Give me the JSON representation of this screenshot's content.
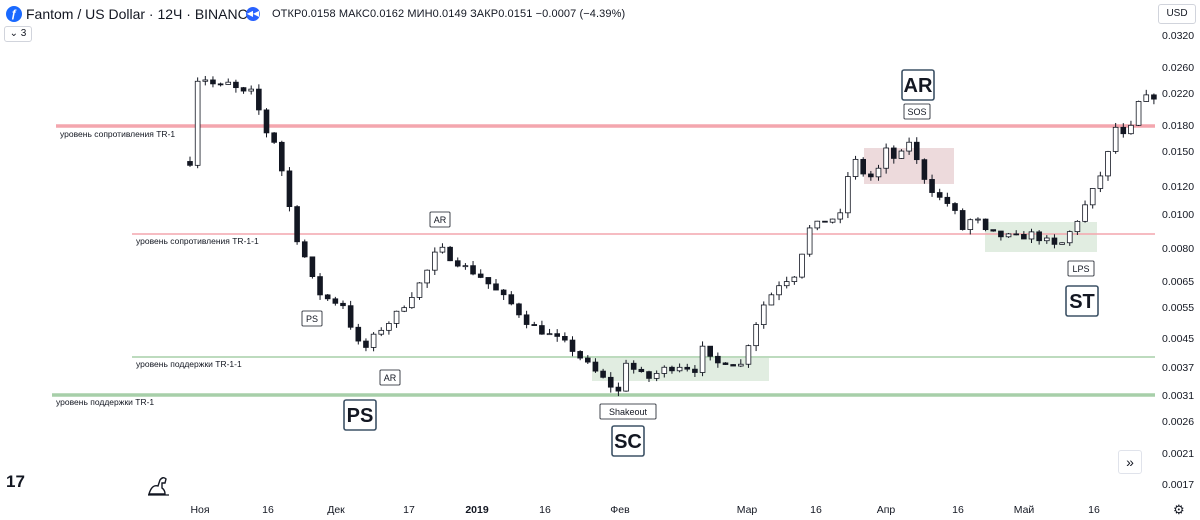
{
  "header": {
    "title": "Fantom / US Dollar · 12Ч · BINANCE",
    "ohlc": "ОТКР0.0158 МАКС0.0162 МИН0.0149 ЗАКР0.0151 −0.0007 (−4.39%)",
    "indicator_count": "3",
    "currency": "USD"
  },
  "icons": {
    "symbol": "fantom-logo-icon",
    "exchange": "replay-icon",
    "collapse": "chevron-down-icon",
    "watermark": "tradingview-logo-icon",
    "drawing": "dino-icon",
    "scroll": "scroll-to-latest-icon",
    "settings": "gear-icon"
  },
  "colors": {
    "resistance_line": "#f4a6ae",
    "support_line": "#a7cfa9",
    "box_red": "#ead3d6",
    "box_green": "#dceadc",
    "candle": "#131722"
  },
  "chart_data": {
    "type": "candlestick",
    "x_ticks": [
      "Ноя",
      "16",
      "Дек",
      "17",
      "2019",
      "16",
      "Фев",
      "Мар",
      "16",
      "Апр",
      "16",
      "Май",
      "16"
    ],
    "y_ticks": [
      "0.0320",
      "0.0260",
      "0.0220",
      "0.0180",
      "0.0150",
      "0.0120",
      "0.0100",
      "0.0080",
      "0.0065",
      "0.0055",
      "0.0045",
      "0.0037",
      "0.0031",
      "0.0026",
      "0.0021",
      "0.0017"
    ],
    "y_scale": "log",
    "close_path": [
      {
        "x": 0,
        "y": 0.014
      },
      {
        "x": 0.5,
        "y": 0.0235
      },
      {
        "x": 1.5,
        "y": 0.0245
      },
      {
        "x": 3,
        "y": 0.0232
      },
      {
        "x": 4,
        "y": 0.0228
      },
      {
        "x": 5.5,
        "y": 0.0235
      },
      {
        "x": 6.5,
        "y": 0.0215
      },
      {
        "x": 7.5,
        "y": 0.0222
      },
      {
        "x": 8.5,
        "y": 0.0218
      },
      {
        "x": 9.5,
        "y": 0.0175
      },
      {
        "x": 11,
        "y": 0.016
      },
      {
        "x": 12.5,
        "y": 0.012
      },
      {
        "x": 13.5,
        "y": 0.009
      },
      {
        "x": 15,
        "y": 0.0075
      },
      {
        "x": 16.5,
        "y": 0.006
      },
      {
        "x": 18,
        "y": 0.0057
      },
      {
        "x": 20,
        "y": 0.0055
      },
      {
        "x": 21,
        "y": 0.0048
      },
      {
        "x": 22.5,
        "y": 0.004
      },
      {
        "x": 23.5,
        "y": 0.0043
      },
      {
        "x": 25,
        "y": 0.0047
      },
      {
        "x": 26.5,
        "y": 0.005
      },
      {
        "x": 28,
        "y": 0.0055
      },
      {
        "x": 30.5,
        "y": 0.0065
      },
      {
        "x": 32.5,
        "y": 0.008
      },
      {
        "x": 34,
        "y": 0.0075
      },
      {
        "x": 36,
        "y": 0.007
      },
      {
        "x": 38,
        "y": 0.0066
      },
      {
        "x": 40,
        "y": 0.006
      },
      {
        "x": 42,
        "y": 0.0055
      },
      {
        "x": 44.5,
        "y": 0.0048
      },
      {
        "x": 47,
        "y": 0.0045
      },
      {
        "x": 49.5,
        "y": 0.0042
      },
      {
        "x": 52,
        "y": 0.0037
      },
      {
        "x": 54.5,
        "y": 0.0033
      },
      {
        "x": 56,
        "y": 0.0031
      },
      {
        "x": 57,
        "y": 0.0038
      },
      {
        "x": 58.5,
        "y": 0.0035
      },
      {
        "x": 60,
        "y": 0.0034
      },
      {
        "x": 62,
        "y": 0.0036
      },
      {
        "x": 64,
        "y": 0.0037
      },
      {
        "x": 66,
        "y": 0.0036
      },
      {
        "x": 67,
        "y": 0.0041
      },
      {
        "x": 68.5,
        "y": 0.0037
      },
      {
        "x": 70,
        "y": 0.0038
      },
      {
        "x": 72,
        "y": 0.0037
      },
      {
        "x": 73.5,
        "y": 0.0046
      },
      {
        "x": 75,
        "y": 0.0055
      },
      {
        "x": 77,
        "y": 0.0063
      },
      {
        "x": 79,
        "y": 0.0067
      },
      {
        "x": 81,
        "y": 0.009
      },
      {
        "x": 83,
        "y": 0.0095
      },
      {
        "x": 85,
        "y": 0.0098
      },
      {
        "x": 86.5,
        "y": 0.0145
      },
      {
        "x": 88,
        "y": 0.013
      },
      {
        "x": 89.5,
        "y": 0.0125
      },
      {
        "x": 91,
        "y": 0.015
      },
      {
        "x": 92.5,
        "y": 0.014
      },
      {
        "x": 94,
        "y": 0.016
      },
      {
        "x": 95,
        "y": 0.014
      },
      {
        "x": 96.5,
        "y": 0.012
      },
      {
        "x": 98,
        "y": 0.011
      },
      {
        "x": 99.5,
        "y": 0.0105
      },
      {
        "x": 101,
        "y": 0.009
      },
      {
        "x": 102.5,
        "y": 0.0098
      },
      {
        "x": 104,
        "y": 0.0088
      },
      {
        "x": 106,
        "y": 0.0086
      },
      {
        "x": 108,
        "y": 0.0085
      },
      {
        "x": 110,
        "y": 0.0087
      },
      {
        "x": 112,
        "y": 0.0083
      },
      {
        "x": 113.5,
        "y": 0.0079
      },
      {
        "x": 115,
        "y": 0.0088
      },
      {
        "x": 116.5,
        "y": 0.01
      },
      {
        "x": 118,
        "y": 0.0115
      },
      {
        "x": 119.5,
        "y": 0.0135
      },
      {
        "x": 121,
        "y": 0.0175
      },
      {
        "x": 122.5,
        "y": 0.016
      },
      {
        "x": 124,
        "y": 0.0205
      },
      {
        "x": 125.5,
        "y": 0.0215
      }
    ],
    "levels": [
      {
        "label": "уровень сопротивления TR-1",
        "price": 0.018,
        "kind": "resistance"
      },
      {
        "label": "уровень сопротивления  TR-1-1",
        "price": 0.0088,
        "kind": "resistance"
      },
      {
        "label": "уровень поддержки  TR-1-1",
        "price": 0.0039,
        "kind": "support"
      },
      {
        "label": "уровень поддержки TR-1",
        "price": 0.0031,
        "kind": "support"
      }
    ],
    "annotations_small": [
      "AR",
      "PS",
      "AR",
      "Shakeout",
      "SOS",
      "LPS"
    ],
    "annotations_big": [
      "PS",
      "SC",
      "AR",
      "ST"
    ]
  }
}
